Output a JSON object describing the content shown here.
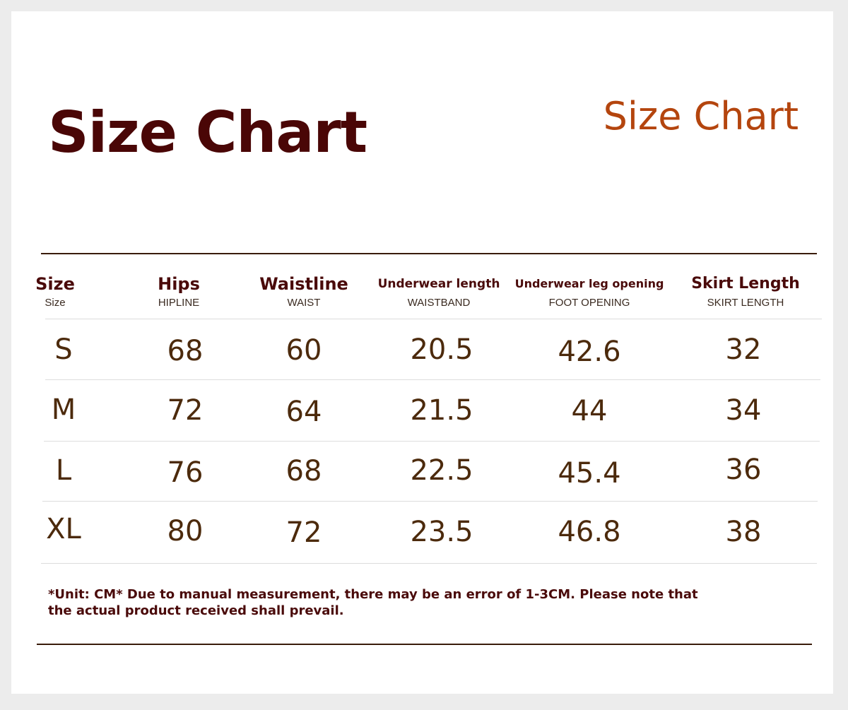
{
  "title": "Size Chart",
  "title_secondary": "Size Chart",
  "columns": [
    {
      "label": "Size",
      "sublabel": "Size"
    },
    {
      "label": "Hips",
      "sublabel": "HIPLINE"
    },
    {
      "label": "Waistline",
      "sublabel": "WAIST"
    },
    {
      "label": "Underwear length",
      "sublabel": "WAISTBAND"
    },
    {
      "label": "Underwear leg opening",
      "sublabel": "FOOT OPENING"
    },
    {
      "label": "Skirt Length",
      "sublabel": "SKIRT LENGTH"
    }
  ],
  "rows": [
    [
      "S",
      "68",
      "60",
      "20.5",
      "42.6",
      "32"
    ],
    [
      "M",
      "72",
      "64",
      "21.5",
      "44",
      "34"
    ],
    [
      "L",
      "76",
      "68",
      "22.5",
      "45.4",
      "36"
    ],
    [
      "XL",
      "80",
      "72",
      "23.5",
      "46.8",
      "38"
    ]
  ],
  "note": {
    "line1": "*Unit: CM* Due to manual measurement, there may be an error of 1-3CM. Please note that",
    "line2": "the actual product received shall prevail."
  },
  "colors": {
    "title": "#4a0606",
    "title_secondary": "#b4450e",
    "values": "#4c2a0c",
    "rule": "#3a1c0a"
  }
}
